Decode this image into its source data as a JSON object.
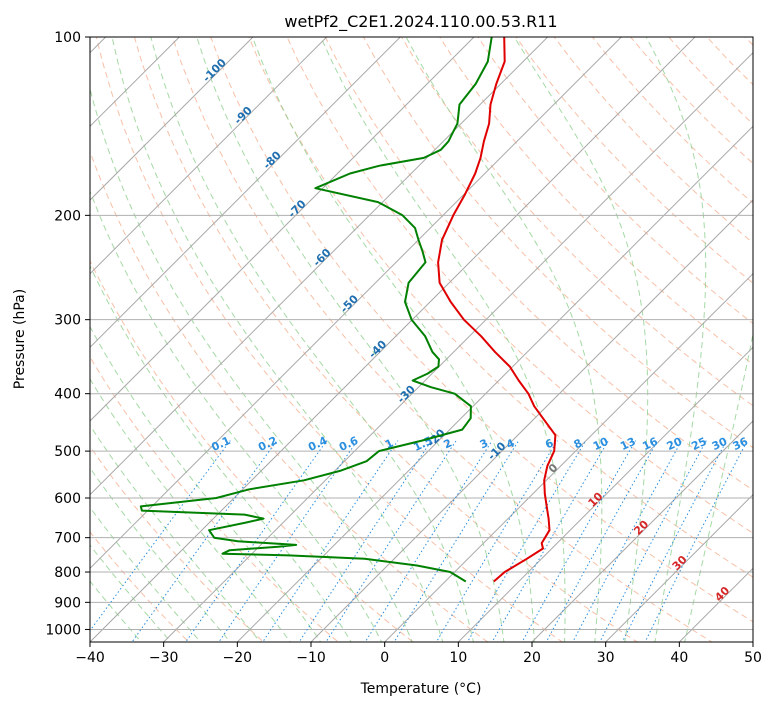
{
  "chart_data": {
    "type": "line",
    "title": "wetPf2_C2E1.2024.110.00.53.R11",
    "xlabel": "Temperature (°C)",
    "ylabel": "Pressure (hPa)",
    "xlim": [
      -40,
      50
    ],
    "ylim": [
      1050,
      100
    ],
    "yscale": "log",
    "grid": true,
    "x_ticks": [
      "−40",
      "−30",
      "−20",
      "−10",
      "0",
      "10",
      "20",
      "30",
      "40",
      "50"
    ],
    "y_ticks": [
      100,
      200,
      300,
      400,
      500,
      600,
      700,
      800,
      900,
      1000
    ],
    "skew": true,
    "colors": {
      "temperature": "#e00000",
      "dewpoint": "#008000",
      "isotherm_label": "#1f6fb0",
      "mixing_ratio": "#2b8fe0",
      "moist_adiabat_label": "#d62728",
      "dry_adiabat": "#f4a582",
      "moist_adiabat": "#8fcf8f"
    },
    "isotherm_labels": [
      "-100",
      "-90",
      "-80",
      "-70",
      "-60",
      "-50",
      "-40",
      "-30",
      "-20",
      "-10"
    ],
    "mixing_ratio_labels": [
      "0.1",
      "0.2",
      "0.4",
      "0.6",
      "1",
      "1.5",
      "2",
      "3",
      "4",
      "6",
      "8",
      "10",
      "13",
      "16",
      "20",
      "25",
      "30",
      "36"
    ],
    "moist_adiabat_labels": [
      "0",
      "10",
      "20",
      "30",
      "40"
    ],
    "series": [
      {
        "role": "temperature",
        "p": [
          830,
          800,
          760,
          730,
          715,
          700,
          680,
          650,
          620,
          590,
          560,
          530,
          500,
          470,
          440,
          420,
          400,
          380,
          360,
          340,
          320,
          300,
          280,
          260,
          240,
          220,
          200,
          185,
          170,
          160,
          150,
          140,
          130,
          120,
          110,
          100
        ],
        "t": [
          6.6,
          6.8,
          8.0,
          8.8,
          7.9,
          7.6,
          7.2,
          5.5,
          3.6,
          1.6,
          -0.3,
          -1.8,
          -2.9,
          -4.9,
          -8.9,
          -11.7,
          -14.2,
          -17.3,
          -20.4,
          -24.4,
          -28.4,
          -33.0,
          -37.2,
          -41.3,
          -44.3,
          -46.8,
          -48.6,
          -49.8,
          -51.3,
          -52.7,
          -54.5,
          -56.2,
          -58.6,
          -60.6,
          -62.5,
          -65.9
        ]
      },
      {
        "role": "dewpoint",
        "p": [
          830,
          800,
          780,
          760,
          750,
          745,
          735,
          725,
          720,
          710,
          700,
          680,
          660,
          650,
          640,
          630,
          620,
          600,
          580,
          560,
          540,
          520,
          500,
          480,
          460,
          440,
          420,
          400,
          390,
          380,
          370,
          360,
          350,
          340,
          320,
          300,
          280,
          260,
          240,
          230,
          220,
          210,
          200,
          190,
          180,
          170,
          165,
          160,
          155,
          150,
          145,
          140,
          130,
          120,
          110,
          100
        ],
        "t": [
          2.8,
          -0.6,
          -6.0,
          -14.0,
          -24.8,
          -34.0,
          -33.5,
          -27.4,
          -25.2,
          -33.6,
          -37.3,
          -39.0,
          -35.0,
          -33.2,
          -36.3,
          -50.8,
          -51.5,
          -42.4,
          -39.1,
          -32.9,
          -29.3,
          -27.0,
          -26.7,
          -22.3,
          -18.3,
          -18.7,
          -20.3,
          -24.2,
          -28.3,
          -31.7,
          -30.6,
          -30.1,
          -31.0,
          -32.9,
          -36.0,
          -40.1,
          -43.4,
          -45.5,
          -46.0,
          -47.9,
          -50.0,
          -52.1,
          -55.5,
          -60.6,
          -71.0,
          -68.3,
          -65.4,
          -60.4,
          -59.2,
          -59.3,
          -59.9,
          -60.5,
          -62.8,
          -63.4,
          -64.8,
          -67.6
        ]
      }
    ]
  }
}
